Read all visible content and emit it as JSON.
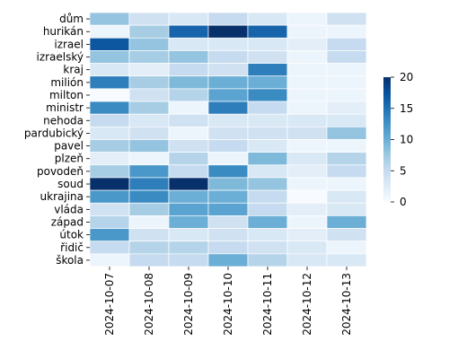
{
  "chart_data": {
    "type": "heatmap",
    "title": "",
    "xlabel": "",
    "ylabel": "",
    "x_categories": [
      "2024-10-07",
      "2024-10-08",
      "2024-10-09",
      "2024-10-10",
      "2024-10-11",
      "2024-10-12",
      "2024-10-13"
    ],
    "y_categories": [
      "dům",
      "hurikán",
      "izrael",
      "izraelský",
      "kraj",
      "milión",
      "milton",
      "ministr",
      "nehoda",
      "pardubický",
      "pavel",
      "plzeň",
      "povodeň",
      "soud",
      "ukrajina",
      "vláda",
      "západ",
      "útok",
      "řidič",
      "škola"
    ],
    "values": [
      [
        8,
        4,
        3,
        5,
        3,
        1,
        4
      ],
      [
        1,
        7,
        16,
        20,
        16,
        1,
        1
      ],
      [
        17,
        8,
        3,
        3,
        3,
        2,
        5
      ],
      [
        8,
        7,
        8,
        5,
        4,
        1,
        5
      ],
      [
        3,
        2,
        5,
        4,
        14,
        1,
        1
      ],
      [
        14,
        7,
        9,
        10,
        10,
        1,
        1
      ],
      [
        0,
        4,
        6,
        11,
        13,
        1,
        1
      ],
      [
        13,
        7,
        1,
        14,
        5,
        1,
        2
      ],
      [
        5,
        3,
        4,
        3,
        3,
        3,
        3
      ],
      [
        3,
        4,
        1,
        4,
        4,
        4,
        8
      ],
      [
        7,
        8,
        4,
        5,
        3,
        1,
        1
      ],
      [
        2,
        1,
        6,
        1,
        9,
        3,
        6
      ],
      [
        7,
        12,
        5,
        13,
        3,
        2,
        5
      ],
      [
        20,
        14,
        20,
        9,
        8,
        1,
        1
      ],
      [
        12,
        13,
        10,
        10,
        5,
        0,
        3
      ],
      [
        4,
        7,
        11,
        11,
        5,
        2,
        3
      ],
      [
        6,
        1,
        10,
        4,
        10,
        1,
        10
      ],
      [
        12,
        4,
        3,
        4,
        3,
        2,
        4
      ],
      [
        5,
        6,
        6,
        5,
        4,
        3,
        1
      ],
      [
        1,
        5,
        5,
        10,
        6,
        3,
        3
      ]
    ],
    "colorbar": {
      "min": 0,
      "max": 20,
      "ticks": [
        0,
        5,
        10,
        15,
        20
      ]
    },
    "colormap": [
      "#f7fbff",
      "#deebf7",
      "#c6dbef",
      "#9ecae1",
      "#6baed6",
      "#4292c6",
      "#2171b5",
      "#08519c",
      "#08306b"
    ]
  }
}
